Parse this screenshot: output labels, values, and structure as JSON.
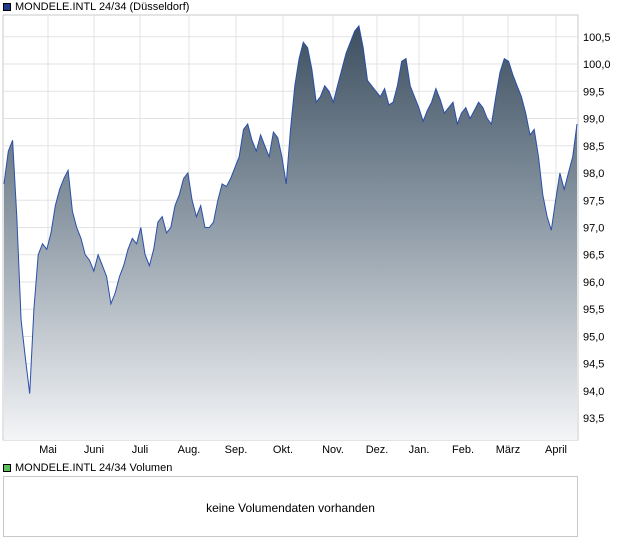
{
  "price_legend": {
    "label": "MONDELE.INTL 24/34 (Düsseldorf)",
    "color": "#1f3a8a"
  },
  "volume_legend": {
    "label": "MONDELE.INTL 24/34 Volumen",
    "color": "#5fbf5f"
  },
  "volume_panel": {
    "message": "keine Volumendaten vorhanden"
  },
  "chart_data": {
    "type": "area",
    "xlabel": "",
    "ylabel": "",
    "grid": true,
    "ylim": [
      93.1,
      100.9
    ],
    "y_ticks": [
      "93,5",
      "94,0",
      "94,5",
      "95,0",
      "95,5",
      "96,0",
      "96,5",
      "97,0",
      "97,5",
      "98,0",
      "98,5",
      "99,0",
      "99,5",
      "100,0",
      "100,5"
    ],
    "x_ticks": [
      "Mai",
      "Juni",
      "Juli",
      "Aug.",
      "Sep.",
      "Okt.",
      "Nov.",
      "Dez.",
      "Jan.",
      "Feb.",
      "März",
      "April"
    ],
    "series": [
      {
        "values": [
          97.8,
          98.4,
          98.6,
          97.2,
          95.3,
          94.6,
          93.95,
          95.5,
          96.5,
          96.7,
          96.6,
          96.9,
          97.4,
          97.7,
          97.9,
          98.05,
          97.3,
          97.0,
          96.8,
          96.5,
          96.4,
          96.2,
          96.5,
          96.3,
          96.1,
          95.6,
          95.8,
          96.1,
          96.3,
          96.6,
          96.8,
          96.7,
          97.0,
          96.5,
          96.3,
          96.6,
          97.1,
          97.2,
          96.9,
          97.0,
          97.4,
          97.6,
          97.9,
          98.0,
          97.5,
          97.2,
          97.4,
          97.0,
          97.0,
          97.1,
          97.5,
          97.8,
          97.75,
          97.9,
          98.1,
          98.3,
          98.8,
          98.9,
          98.6,
          98.4,
          98.7,
          98.5,
          98.3,
          98.75,
          98.65,
          98.3,
          97.8,
          98.8,
          99.6,
          100.1,
          100.4,
          100.3,
          99.9,
          99.3,
          99.4,
          99.6,
          99.5,
          99.3,
          99.6,
          99.9,
          100.2,
          100.4,
          100.6,
          100.7,
          100.3,
          99.7,
          99.6,
          99.5,
          99.4,
          99.55,
          99.25,
          99.3,
          99.6,
          100.05,
          100.1,
          99.6,
          99.4,
          99.2,
          98.95,
          99.15,
          99.3,
          99.55,
          99.35,
          99.1,
          99.2,
          99.3,
          98.9,
          99.1,
          99.2,
          99.0,
          99.15,
          99.3,
          99.2,
          99.0,
          98.9,
          99.4,
          99.85,
          100.1,
          100.05,
          99.8,
          99.6,
          99.4,
          99.1,
          98.7,
          98.8,
          98.3,
          97.6,
          97.2,
          96.95,
          97.5,
          98.0,
          97.7,
          98.0,
          98.3,
          98.9
        ]
      }
    ]
  }
}
